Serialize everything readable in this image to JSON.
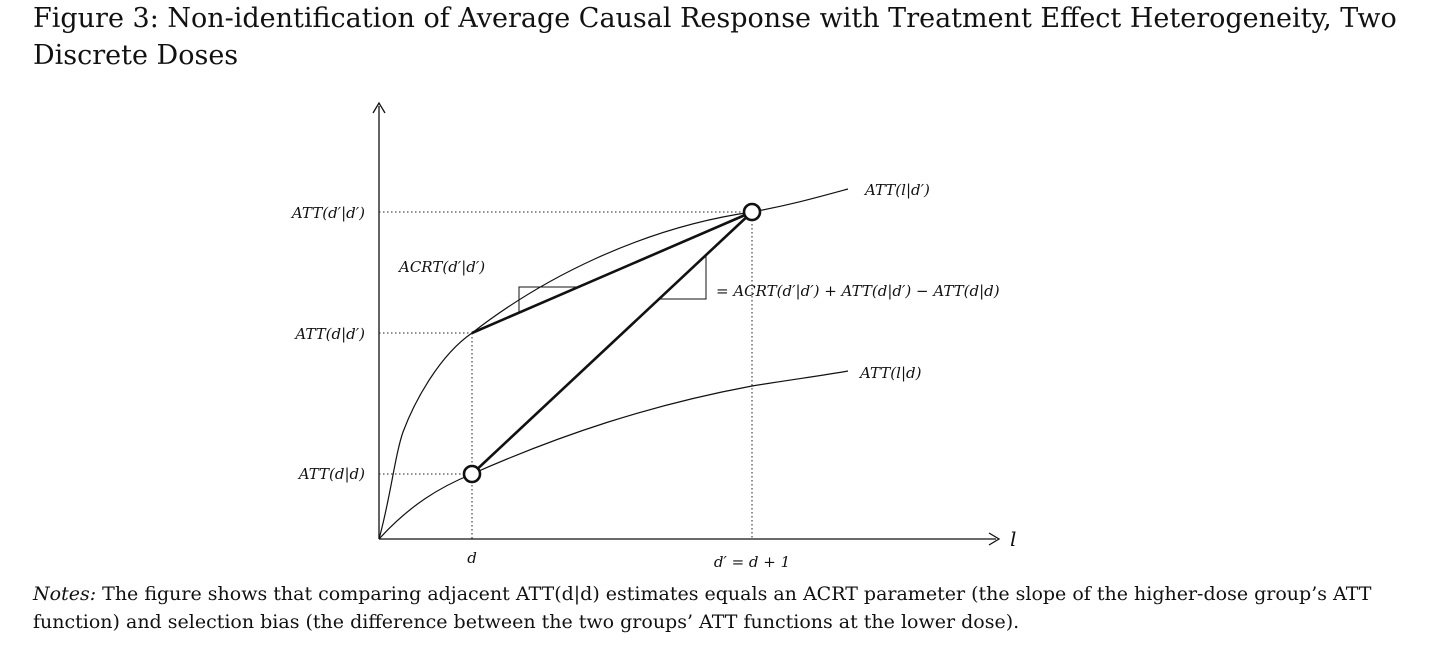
{
  "figure": {
    "title": "Figure 3: Non-identification of Average Causal Response with Treatment Effect Heterogeneity, Two Discrete Doses"
  },
  "chart_data": {
    "type": "line",
    "xlabel": "l",
    "ylabel": "",
    "grid": false,
    "x_ticks": [
      "d",
      "d′ = d + 1"
    ],
    "y_ticks": [
      "ATT(d′|d′)",
      "ATT(d|d′)",
      "ATT(d|d)"
    ],
    "series": [
      {
        "name": "ATT(l|d′)"
      },
      {
        "name": "ATT(l|d)"
      }
    ],
    "annotations": [
      "ACRT(d′|d′)",
      "= ACRT(d′|d′) + ATT(d|d′) − ATT(d|d)"
    ]
  },
  "notes": {
    "lead": "Notes:",
    "text": " The figure shows that comparing adjacent ATT(d|d) estimates equals an ACRT parameter (the slope of the higher-dose group’s ATT function) and selection bias (the difference between the two groups’ ATT functions at the lower dose)."
  }
}
